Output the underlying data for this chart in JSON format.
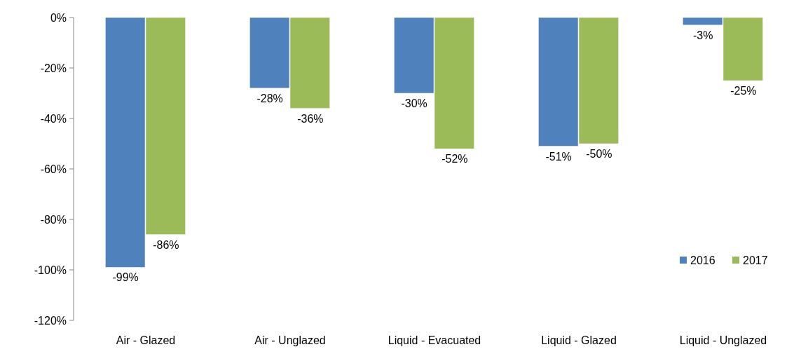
{
  "chart_data": {
    "type": "bar",
    "categories": [
      "Air - Glazed",
      "Air - Unglazed",
      "Liquid - Evacuated",
      "Liquid - Glazed",
      "Liquid - Unglazed"
    ],
    "series": [
      {
        "name": "2016",
        "color": "#4f81bd",
        "values": [
          -99,
          -28,
          -30,
          -51,
          -3
        ]
      },
      {
        "name": "2017",
        "color": "#9bbb59",
        "values": [
          -86,
          -36,
          -52,
          -50,
          -25
        ]
      }
    ],
    "ylim": [
      -120,
      0
    ],
    "yticks": [
      {
        "value": 0,
        "label": "0%"
      },
      {
        "value": -20,
        "label": "-20%"
      },
      {
        "value": -40,
        "label": "-40%"
      },
      {
        "value": -60,
        "label": "-60%"
      },
      {
        "value": -80,
        "label": "-80%"
      },
      {
        "value": -100,
        "label": "-100%"
      },
      {
        "value": -120,
        "label": "-120%"
      }
    ],
    "value_labels": [
      [
        "-99%",
        "-28%",
        "-30%",
        "-51%",
        "-3%"
      ],
      [
        "-86%",
        "-36%",
        "-52%",
        "-50%",
        "-25%"
      ]
    ],
    "legend": "right",
    "grid": false
  }
}
